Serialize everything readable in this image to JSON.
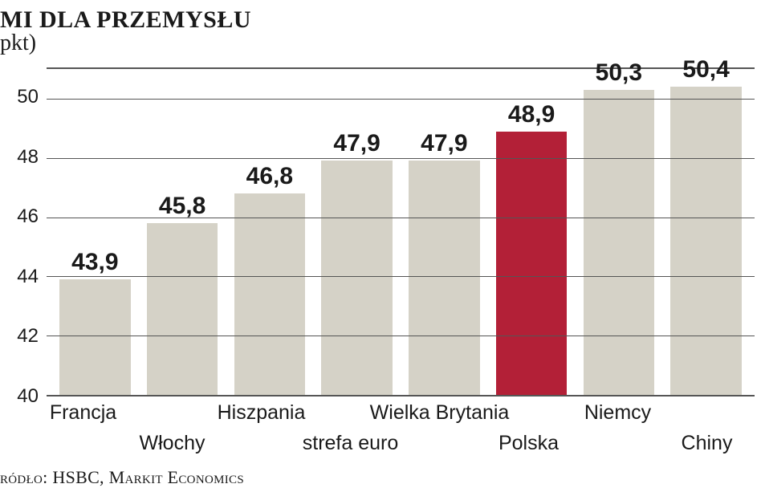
{
  "title": {
    "line1": "MI dla przemysłu",
    "line2": "pkt)"
  },
  "chart": {
    "type": "bar",
    "ylim": [
      40,
      51
    ],
    "ytick_min": 40,
    "ytick_max": 50,
    "ytick_step": 2,
    "grid_color": "#555555",
    "background_color": "#ffffff",
    "default_bar_color": "#d5d2c7",
    "highlight_bar_color": "#b32037",
    "label_fontsize": 30,
    "label_fontweight": 700,
    "axis_fontsize": 24,
    "xlabel_fontsize": 25,
    "bar_width": 0.88,
    "bars": [
      {
        "country": "Francja",
        "value": 43.9,
        "label": "43,9",
        "color": "#d5d2c7",
        "xrow": 0
      },
      {
        "country": "Włochy",
        "value": 45.8,
        "label": "45,8",
        "color": "#d5d2c7",
        "xrow": 1
      },
      {
        "country": "Hiszpania",
        "value": 46.8,
        "label": "46,8",
        "color": "#d5d2c7",
        "xrow": 0
      },
      {
        "country": "strefa euro",
        "value": 47.9,
        "label": "47,9",
        "color": "#d5d2c7",
        "xrow": 1
      },
      {
        "country": "Wielka Brytania",
        "value": 47.9,
        "label": "47,9",
        "color": "#d5d2c7",
        "xrow": 0
      },
      {
        "country": "Polska",
        "value": 48.9,
        "label": "48,9",
        "color": "#b32037",
        "xrow": 1
      },
      {
        "country": "Niemcy",
        "value": 50.3,
        "label": "50,3",
        "color": "#d5d2c7",
        "xrow": 0
      },
      {
        "country": "Chiny",
        "value": 50.4,
        "label": "50,4",
        "color": "#d5d2c7",
        "xrow": 1
      }
    ]
  },
  "source": "ródło: HSBC, Markit Economics"
}
